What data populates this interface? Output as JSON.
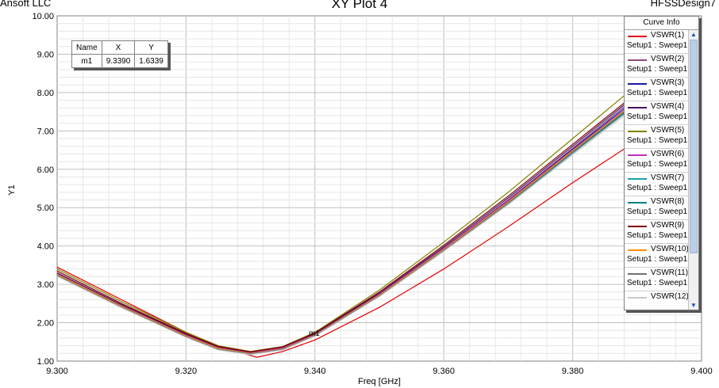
{
  "header": {
    "company": "Ansoft LLC",
    "title": "XY Plot 4",
    "design": "HFSSDesign7"
  },
  "marker_table": {
    "headers": [
      "Name",
      "X",
      "Y"
    ],
    "rows": [
      [
        "m1",
        "9.3390",
        "1.6339"
      ]
    ]
  },
  "marker": {
    "label": "m1",
    "x": 9.339,
    "y": 1.6339
  },
  "legend": {
    "title": "Curve Info",
    "scroll_up_icon": "chevron-up-icon",
    "scroll_down_icon": "chevron-down-icon",
    "items": [
      {
        "name": "VSWR(1)",
        "setup": "Setup1 : Sweep1",
        "color": "#e00000"
      },
      {
        "name": "VSWR(2)",
        "setup": "Setup1 : Sweep1",
        "color": "#8b4a7a"
      },
      {
        "name": "VSWR(3)",
        "setup": "Setup1 : Sweep1",
        "color": "#1a1aa0"
      },
      {
        "name": "VSWR(4)",
        "setup": "Setup1 : Sweep1",
        "color": "#4a1060"
      },
      {
        "name": "VSWR(5)",
        "setup": "Setup1 : Sweep1",
        "color": "#808000"
      },
      {
        "name": "VSWR(6)",
        "setup": "Setup1 : Sweep1",
        "color": "#c030c0"
      },
      {
        "name": "VSWR(7)",
        "setup": "Setup1 : Sweep1",
        "color": "#20a0b0"
      },
      {
        "name": "VSWR(8)",
        "setup": "Setup1 : Sweep1",
        "color": "#008080"
      },
      {
        "name": "VSWR(9)",
        "setup": "Setup1 : Sweep1",
        "color": "#800000"
      },
      {
        "name": "VSWR(10)",
        "setup": "Setup1 : Sweep1",
        "color": "#ff8c00"
      },
      {
        "name": "VSWR(11)",
        "setup": "Setup1 : Sweep1",
        "color": "#707070"
      },
      {
        "name": "VSWR(12)",
        "setup": "",
        "color": "#c8c8c8"
      }
    ]
  },
  "chart_data": {
    "type": "line",
    "title": "XY Plot 4",
    "xlabel": "Freq [GHz]",
    "ylabel": "Y1",
    "xlim": [
      9.3,
      9.4
    ],
    "ylim": [
      1.0,
      10.0
    ],
    "xticks": [
      "9.300",
      "9.320",
      "9.340",
      "9.360",
      "9.380",
      "9.400"
    ],
    "yticks": [
      "1.00",
      "2.00",
      "3.00",
      "4.00",
      "5.00",
      "6.00",
      "7.00",
      "8.00",
      "9.00",
      "10.00"
    ],
    "grid": true,
    "legend_position": "top-right",
    "series": [
      {
        "name": "VSWR(1)",
        "color": "#e00000",
        "x": [
          9.3,
          9.31,
          9.32,
          9.325,
          9.331,
          9.335,
          9.34,
          9.35,
          9.36,
          9.37,
          9.38,
          9.39
        ],
        "y": [
          3.45,
          2.6,
          1.75,
          1.4,
          1.1,
          1.25,
          1.55,
          2.4,
          3.4,
          4.5,
          5.65,
          6.75
        ]
      },
      {
        "name": "VSWR(2)",
        "color": "#8b4a7a",
        "x": [
          9.3,
          9.31,
          9.32,
          9.325,
          9.33,
          9.335,
          9.34,
          9.35,
          9.36,
          9.37,
          9.38,
          9.39
        ],
        "y": [
          3.28,
          2.45,
          1.68,
          1.35,
          1.22,
          1.35,
          1.7,
          2.75,
          3.95,
          5.2,
          6.55,
          7.9
        ]
      },
      {
        "name": "VSWR(3)",
        "color": "#1a1aa0",
        "x": [
          9.3,
          9.31,
          9.32,
          9.325,
          9.33,
          9.335,
          9.34,
          9.35,
          9.36,
          9.37,
          9.38,
          9.39
        ],
        "y": [
          3.25,
          2.42,
          1.65,
          1.32,
          1.2,
          1.33,
          1.68,
          2.72,
          3.92,
          5.18,
          6.52,
          7.85
        ]
      },
      {
        "name": "VSWR(4)",
        "color": "#4a1060",
        "x": [
          9.3,
          9.31,
          9.32,
          9.325,
          9.33,
          9.335,
          9.34,
          9.35,
          9.36,
          9.37,
          9.38,
          9.39
        ],
        "y": [
          3.3,
          2.47,
          1.7,
          1.37,
          1.23,
          1.36,
          1.72,
          2.77,
          3.98,
          5.25,
          6.6,
          7.95
        ]
      },
      {
        "name": "VSWR(5)",
        "color": "#808000",
        "x": [
          9.3,
          9.31,
          9.32,
          9.325,
          9.33,
          9.335,
          9.34,
          9.35,
          9.36,
          9.37,
          9.38,
          9.39
        ],
        "y": [
          3.4,
          2.55,
          1.75,
          1.4,
          1.25,
          1.38,
          1.75,
          2.85,
          4.1,
          5.4,
          6.8,
          8.2
        ]
      },
      {
        "name": "VSWR(6)",
        "color": "#c030c0",
        "x": [
          9.3,
          9.31,
          9.32,
          9.325,
          9.33,
          9.335,
          9.34,
          9.35,
          9.36,
          9.37,
          9.38,
          9.39
        ],
        "y": [
          3.27,
          2.44,
          1.67,
          1.34,
          1.21,
          1.34,
          1.69,
          2.73,
          3.93,
          5.17,
          6.5,
          7.8
        ]
      },
      {
        "name": "VSWR(7)",
        "color": "#20a0b0",
        "x": [
          9.3,
          9.31,
          9.32,
          9.325,
          9.33,
          9.335,
          9.34,
          9.35,
          9.36,
          9.37,
          9.38,
          9.39
        ],
        "y": [
          3.22,
          2.4,
          1.63,
          1.3,
          1.18,
          1.3,
          1.66,
          2.7,
          3.88,
          5.1,
          6.42,
          7.7
        ]
      },
      {
        "name": "VSWR(8)",
        "color": "#008080",
        "x": [
          9.3,
          9.31,
          9.32,
          9.325,
          9.33,
          9.335,
          9.34,
          9.35,
          9.36,
          9.37,
          9.38,
          9.39
        ],
        "y": [
          3.24,
          2.41,
          1.64,
          1.31,
          1.19,
          1.31,
          1.67,
          2.71,
          3.9,
          5.13,
          6.46,
          7.75
        ]
      },
      {
        "name": "VSWR(9)",
        "color": "#800000",
        "x": [
          9.3,
          9.31,
          9.32,
          9.325,
          9.33,
          9.335,
          9.34,
          9.35,
          9.36,
          9.37,
          9.38,
          9.39
        ],
        "y": [
          3.35,
          2.5,
          1.72,
          1.38,
          1.24,
          1.37,
          1.73,
          2.8,
          4.02,
          5.3,
          6.65,
          8.0
        ]
      },
      {
        "name": "VSWR(10)",
        "color": "#ff8c00",
        "x": [
          9.3,
          9.31,
          9.32,
          9.325,
          9.33,
          9.335,
          9.34,
          9.35,
          9.36,
          9.37,
          9.38,
          9.39
        ],
        "y": [
          3.26,
          2.43,
          1.66,
          1.33,
          1.2,
          1.32,
          1.68,
          2.72,
          3.91,
          5.15,
          6.48,
          7.78
        ]
      },
      {
        "name": "VSWR(11)",
        "color": "#707070",
        "x": [
          9.3,
          9.31,
          9.32,
          9.325,
          9.33,
          9.335,
          9.34,
          9.35,
          9.36,
          9.37,
          9.38,
          9.39
        ],
        "y": [
          3.23,
          2.41,
          1.64,
          1.31,
          1.19,
          1.31,
          1.67,
          2.7,
          3.89,
          5.12,
          6.44,
          7.72
        ]
      },
      {
        "name": "VSWR(12)",
        "color": "#c8c8c8",
        "x": [
          9.3,
          9.31,
          9.32,
          9.325,
          9.33,
          9.335,
          9.34,
          9.35,
          9.36,
          9.37,
          9.38,
          9.39
        ],
        "y": [
          3.21,
          2.39,
          1.62,
          1.29,
          1.17,
          1.29,
          1.65,
          2.68,
          3.86,
          5.08,
          6.38,
          7.65
        ]
      }
    ]
  }
}
